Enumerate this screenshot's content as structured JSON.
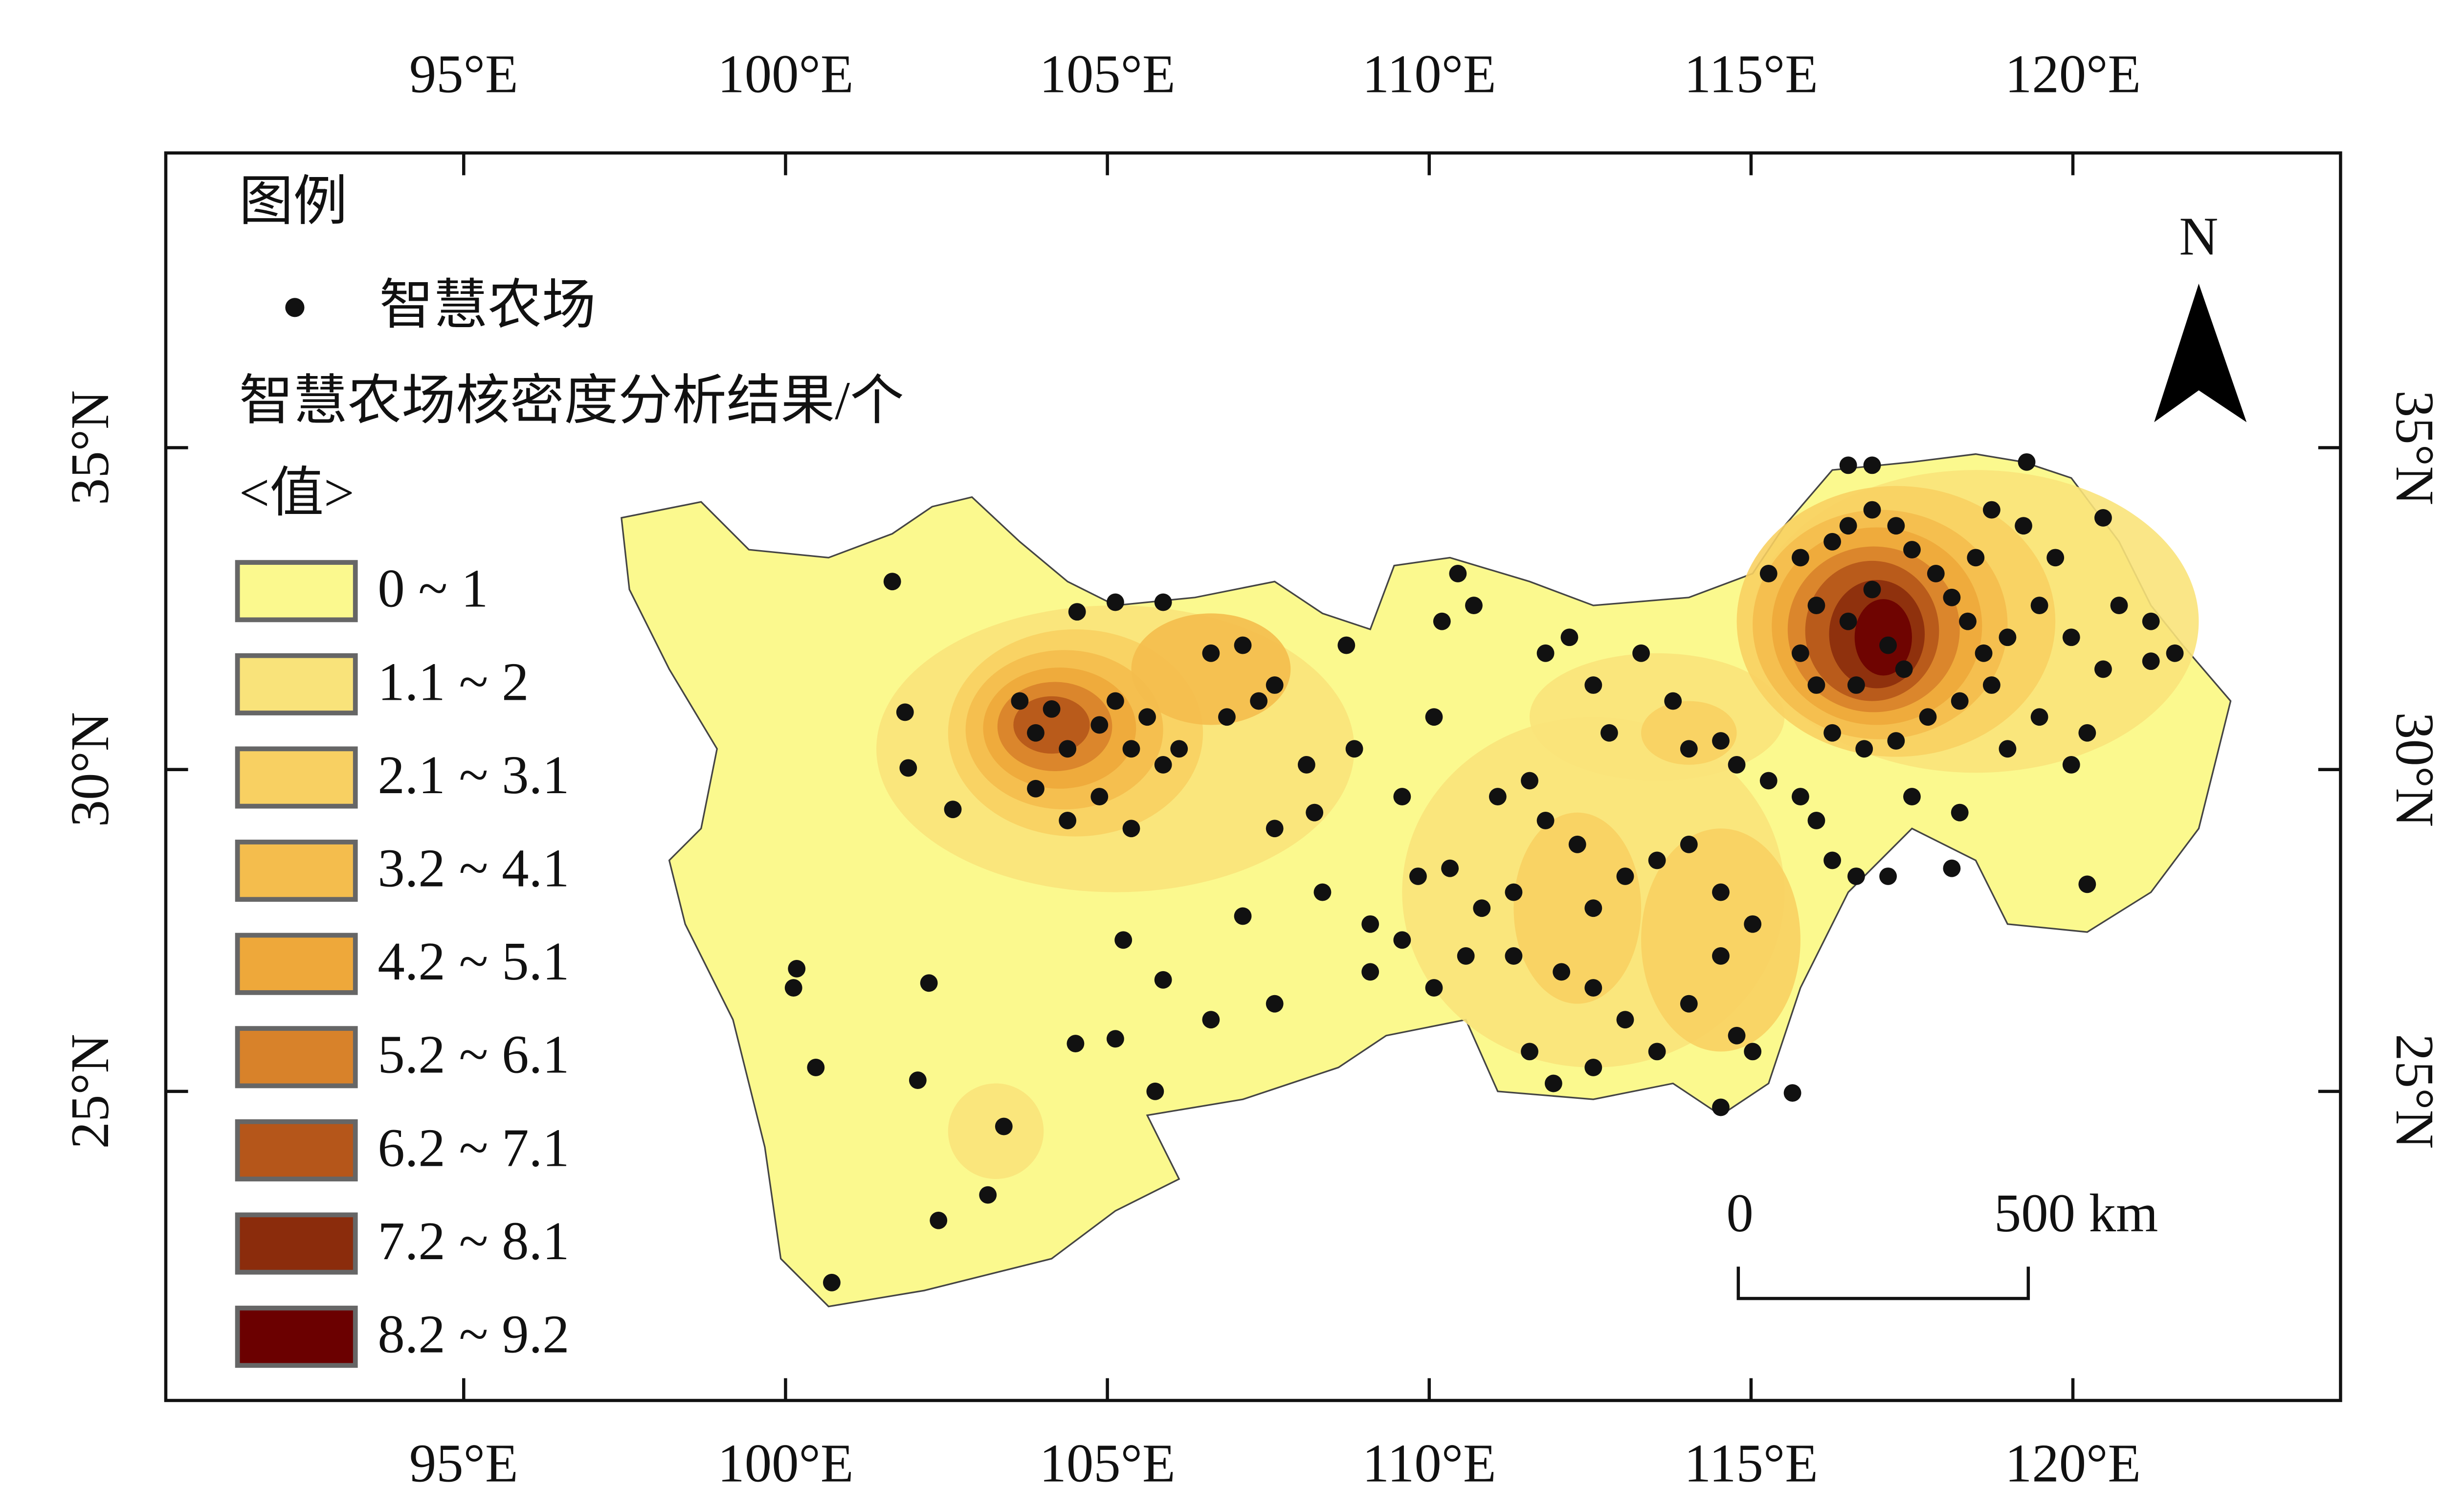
{
  "legend": {
    "title": "图例",
    "point_label": "智慧农场",
    "density_title": "智慧农场核密度分析结果/个",
    "value_header": "<值>",
    "classes": [
      {
        "label": "0 ~ 1",
        "color": "#fbf98e"
      },
      {
        "label": "1.1 ~ 2",
        "color": "#f9e37a"
      },
      {
        "label": "2.1 ~ 3.1",
        "color": "#f8d062"
      },
      {
        "label": "3.2 ~ 4.1",
        "color": "#f4bd4d"
      },
      {
        "label": "4.2 ~ 5.1",
        "color": "#eea83a"
      },
      {
        "label": "5.2 ~ 6.1",
        "color": "#d8822a"
      },
      {
        "label": "6.2 ~ 7.1",
        "color": "#b5561a"
      },
      {
        "label": "7.2 ~ 8.1",
        "color": "#8b2c0c"
      },
      {
        "label": "8.2 ~ 9.2",
        "color": "#6b0000"
      }
    ]
  },
  "lon_ticks": [
    {
      "value": 95,
      "label": "95°E"
    },
    {
      "value": 100,
      "label": "100°E"
    },
    {
      "value": 105,
      "label": "105°E"
    },
    {
      "value": 110,
      "label": "110°E"
    },
    {
      "value": 115,
      "label": "115°E"
    },
    {
      "value": 120,
      "label": "120°E"
    }
  ],
  "lat_ticks": [
    {
      "value": 35,
      "label": "35°N"
    },
    {
      "value": 30,
      "label": "30°N"
    },
    {
      "value": 25,
      "label": "25°N"
    }
  ],
  "north": "N",
  "scale_bar": {
    "start": "0",
    "end": "500 km"
  }
}
